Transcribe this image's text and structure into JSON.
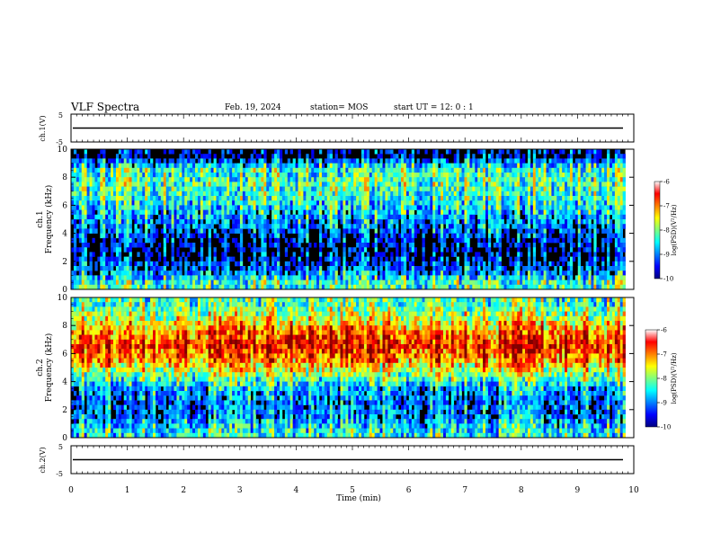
{
  "header": {
    "title": "VLF Spectra",
    "date": "Feb. 19, 2024",
    "station": "station= MOS",
    "start_ut": "start UT =  12: 0 : 1"
  },
  "chart_data": [
    {
      "type": "line",
      "panel": "ch1-waveform",
      "ylabel": "ch.1(V)",
      "ylim": [
        -5,
        5
      ],
      "yticks": [
        "5",
        "-5"
      ],
      "x": [
        0,
        10
      ],
      "values": [
        0,
        0
      ],
      "color": "#000000"
    },
    {
      "type": "heatmap",
      "panel": "ch1-spectrogram",
      "ylabel": "ch.1\nFrequency (kHz)",
      "ylim": [
        0,
        10
      ],
      "xlim": [
        0,
        10
      ],
      "yticks": [
        "0",
        "2",
        "4",
        "6",
        "8",
        "10"
      ],
      "data_xmax": 9.85,
      "colorbar": {
        "label": "log(PSD)(V²/Hz)",
        "range": [
          -10,
          -6
        ],
        "ticks": [
          "-6",
          "-7",
          "-8",
          "-9",
          "-10"
        ],
        "colormap": "jet"
      },
      "intensity_profile": [
        {
          "freq_khz": 0.5,
          "log_psd": -8.6
        },
        {
          "freq_khz": 1.5,
          "log_psd": -9.6
        },
        {
          "freq_khz": 2.5,
          "log_psd": -10
        },
        {
          "freq_khz": 3.5,
          "log_psd": -9.9
        },
        {
          "freq_khz": 4.5,
          "log_psd": -9.4
        },
        {
          "freq_khz": 5.5,
          "log_psd": -9.0
        },
        {
          "freq_khz": 6.5,
          "log_psd": -8.7
        },
        {
          "freq_khz": 7.5,
          "log_psd": -8.5
        },
        {
          "freq_khz": 8.5,
          "log_psd": -8.6
        },
        {
          "freq_khz": 9.5,
          "log_psd": -10
        }
      ]
    },
    {
      "type": "heatmap",
      "panel": "ch2-spectrogram",
      "ylabel": "ch.2\nFrequency (kHz)",
      "ylim": [
        0,
        10
      ],
      "xlim": [
        0,
        10
      ],
      "yticks": [
        "0",
        "2",
        "4",
        "6",
        "8",
        "10"
      ],
      "data_xmax": 9.85,
      "colorbar": {
        "label": "log(PSD)(V²/Hz)",
        "range": [
          -10,
          -6
        ],
        "ticks": [
          "-6",
          "-7",
          "-8",
          "-9",
          "-10"
        ],
        "colormap": "jet"
      },
      "intensity_profile": [
        {
          "freq_khz": 0.5,
          "log_psd": -8.8
        },
        {
          "freq_khz": 1.5,
          "log_psd": -9.4
        },
        {
          "freq_khz": 2.5,
          "log_psd": -9.5
        },
        {
          "freq_khz": 3.5,
          "log_psd": -9.2
        },
        {
          "freq_khz": 4.5,
          "log_psd": -8.3
        },
        {
          "freq_khz": 5.5,
          "log_psd": -7.4
        },
        {
          "freq_khz": 6.5,
          "log_psd": -6.9
        },
        {
          "freq_khz": 7.5,
          "log_psd": -7.3
        },
        {
          "freq_khz": 8.5,
          "log_psd": -8.0
        },
        {
          "freq_khz": 9.5,
          "log_psd": -8.6
        }
      ]
    },
    {
      "type": "line",
      "panel": "ch2-waveform",
      "ylabel": "ch.2(V)",
      "ylim": [
        -5,
        5
      ],
      "yticks": [
        "5",
        "-5"
      ],
      "x": [
        0,
        10
      ],
      "values": [
        0,
        0
      ],
      "color": "#000000"
    }
  ],
  "xaxis": {
    "label": "Time (min)",
    "range": [
      0,
      10
    ],
    "ticks": [
      "0",
      "1",
      "2",
      "3",
      "4",
      "5",
      "6",
      "7",
      "8",
      "9",
      "10"
    ]
  }
}
